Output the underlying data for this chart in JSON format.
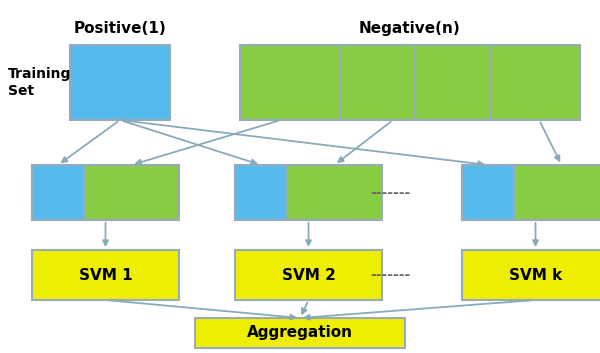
{
  "bg_color": "#ffffff",
  "blue_color": "#55bbee",
  "green_color": "#88cc44",
  "yellow_color": "#eeee00",
  "border_color": "#99aabb",
  "arrow_color": "#88aabb",
  "text_color": "#000000",
  "title_positive": "Positive(1)",
  "title_negative": "Negative(n)",
  "label_training": "Training\nSet",
  "agg_label": "Aggregation",
  "dots": "-------",
  "figsize": [
    6.0,
    3.53
  ],
  "dpi": 100
}
